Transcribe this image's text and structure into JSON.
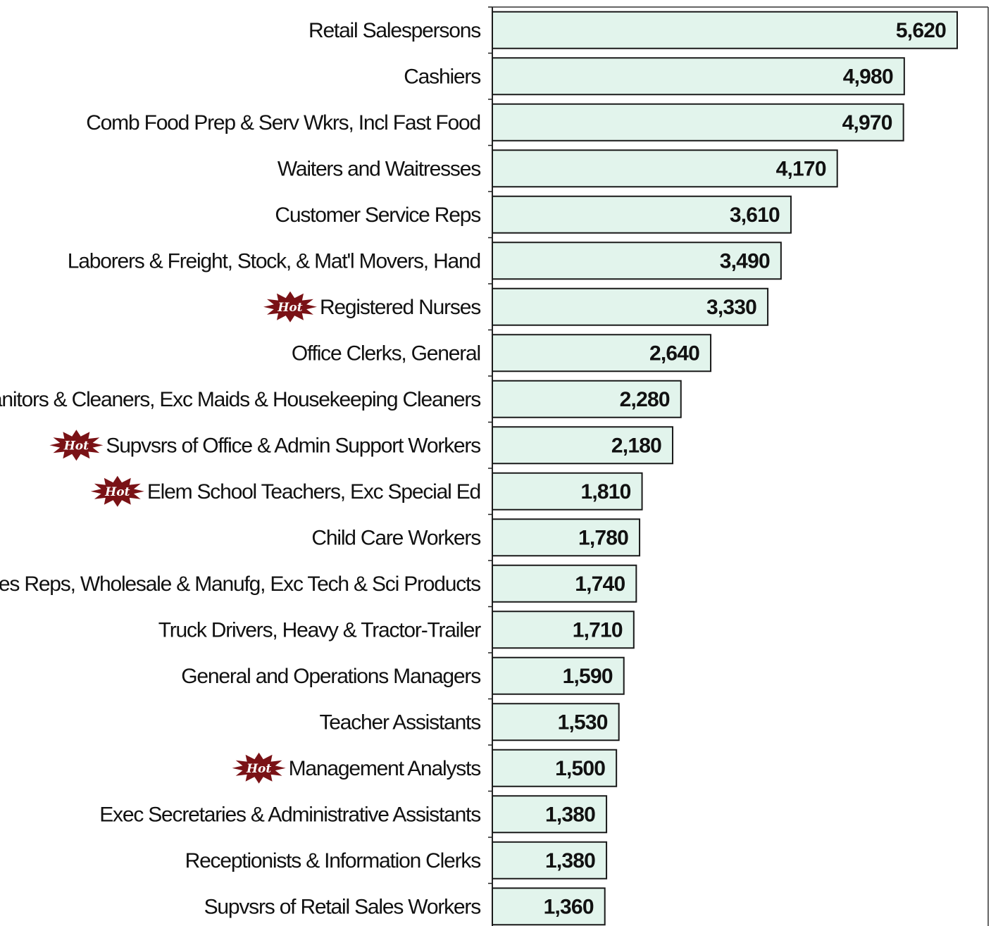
{
  "chart_data": {
    "type": "bar",
    "orientation": "horizontal",
    "categories": [
      "Retail Salespersons",
      "Cashiers",
      "Comb Food Prep & Serv Wkrs, Incl Fast Food",
      "Waiters and Waitresses",
      "Customer Service Reps",
      "Laborers & Freight, Stock, & Mat'l Movers, Hand",
      "Registered Nurses",
      "Office Clerks, General",
      "Janitors & Cleaners, Exc Maids & Housekeeping Cleaners",
      "Supvsrs of Office & Admin Support Workers",
      "Elem School Teachers, Exc Special Ed",
      "Child Care Workers",
      "Sales Reps, Wholesale & Manufg, Exc Tech & Sci Products",
      "Truck Drivers, Heavy & Tractor-Trailer",
      "General and Operations Managers",
      "Teacher Assistants",
      "Management Analysts",
      "Exec Secretaries & Administrative Assistants",
      "Receptionists & Information Clerks",
      "Supvsrs of Retail Sales Workers"
    ],
    "values": [
      5620,
      4980,
      4970,
      4170,
      3610,
      3490,
      3330,
      2640,
      2280,
      2180,
      1810,
      1780,
      1740,
      1710,
      1590,
      1530,
      1500,
      1380,
      1380,
      1360
    ],
    "value_labels": [
      "5,620",
      "4,980",
      "4,970",
      "4,170",
      "3,610",
      "3,490",
      "3,330",
      "2,640",
      "2,280",
      "2,180",
      "1,810",
      "1,780",
      "1,740",
      "1,710",
      "1,590",
      "1,530",
      "1,500",
      "1,380",
      "1,380",
      "1,360"
    ],
    "hot": [
      false,
      false,
      false,
      false,
      false,
      false,
      true,
      false,
      false,
      true,
      true,
      false,
      false,
      false,
      false,
      false,
      true,
      false,
      false,
      false
    ],
    "hot_badge_text": "Hot",
    "xlim": [
      0,
      6000
    ],
    "grid": false,
    "legend": "none",
    "title": "",
    "xlabel": "",
    "ylabel": "",
    "colors": {
      "bar_fill": "#e2f4ec",
      "bar_stroke": "#1a1a1a",
      "hot_badge": "#7a1216",
      "text": "#111111"
    }
  }
}
